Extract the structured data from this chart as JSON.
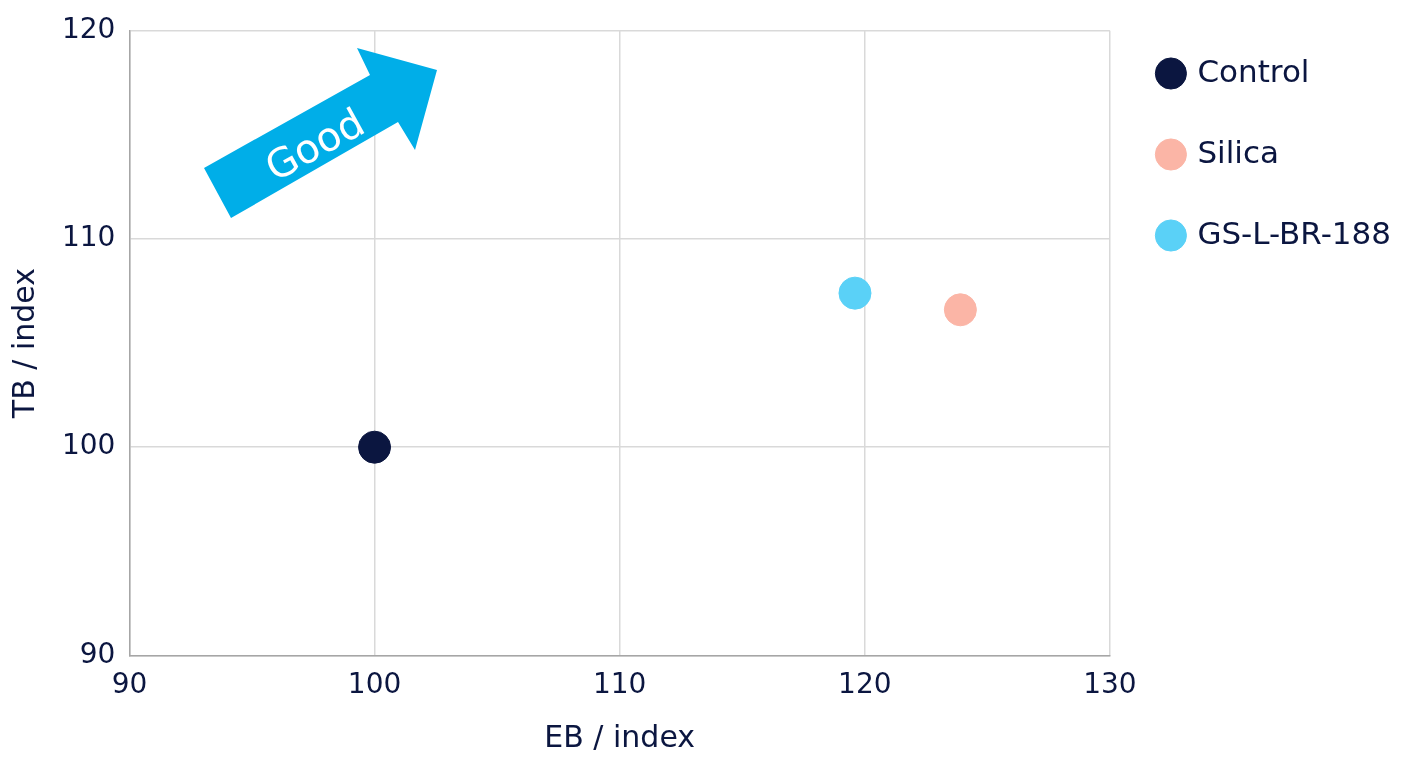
{
  "chart_data": {
    "type": "scatter",
    "xlabel": "EB / index",
    "ylabel": "TB / index",
    "series": [
      {
        "name": "Control",
        "color": "#0b1640",
        "x": [
          100
        ],
        "values": [
          100
        ]
      },
      {
        "name": "Silica",
        "color": "#fbb5a6",
        "x": [
          123.9
        ],
        "values": [
          106.6
        ]
      },
      {
        "name": "GS-L-BR-188",
        "color": "#5ad1f7",
        "x": [
          119.6
        ],
        "values": [
          107.4
        ]
      }
    ],
    "xlim": [
      90,
      130
    ],
    "xticks": [
      90,
      100,
      110,
      120,
      130
    ],
    "ylim": [
      90,
      120
    ],
    "yticks": [
      90,
      100,
      110,
      120
    ],
    "grid": true,
    "legend": "top right",
    "marker": "circle",
    "annotations": [
      "Good"
    ]
  }
}
